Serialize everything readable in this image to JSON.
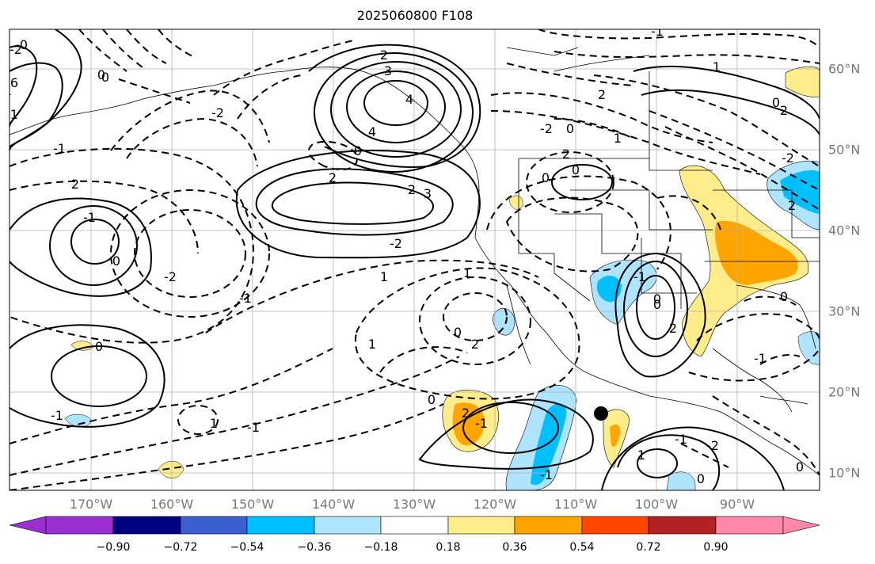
{
  "title": "2025060800 F108",
  "map": {
    "lon_labels": [
      "170°W",
      "160°W",
      "150°W",
      "140°W",
      "130°W",
      "120°W",
      "110°W",
      "100°W",
      "90°W"
    ],
    "lat_labels": [
      "60°N",
      "50°N",
      "40°N",
      "30°N",
      "20°N",
      "10°N"
    ],
    "contour_labels": [
      "2",
      "4",
      "3",
      "6",
      "0",
      "-1",
      "-2",
      "0",
      "2",
      "3",
      "4",
      "0",
      "2",
      "2",
      "-1",
      "0",
      "-2",
      "-1",
      "1",
      "1",
      "0",
      "1",
      "-2",
      "0",
      "1",
      "-1",
      "-2",
      "0",
      "-1",
      "1",
      "-1",
      "0",
      "2",
      "-1",
      "-1",
      "2",
      "2",
      "0",
      "0",
      "-1",
      "1",
      "2",
      "-2",
      "0",
      "1",
      "0",
      "2",
      "-2",
      "2",
      "0",
      "-1",
      "0",
      "-2",
      "-1",
      "1",
      "0",
      "2",
      "0",
      "-1",
      "0"
    ],
    "marker": "dot"
  },
  "colorbar": {
    "ticks": [
      "−0.90",
      "−0.72",
      "−0.54",
      "−0.36",
      "−0.18",
      "0.18",
      "0.36",
      "0.54",
      "0.72",
      "0.90"
    ],
    "colors": [
      "#9b30d0",
      "#000080",
      "#3a5fcd",
      "#00bfff",
      "#aee4ff",
      "#ffffff",
      "#ffec8b",
      "#ffa500",
      "#ff4500",
      "#b22222",
      "#ff88aa"
    ]
  }
}
